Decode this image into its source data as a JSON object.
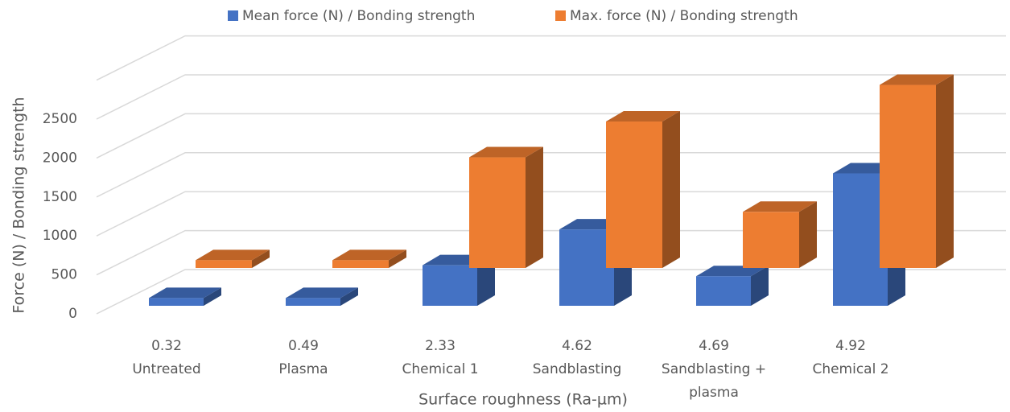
{
  "chart_data": {
    "type": "bar3d",
    "legend": "top",
    "grid": true,
    "x_label": "Surface roughness (Ra-µm)",
    "y_label": "Force (N) / Bonding strength",
    "categories": [
      [
        "0.32",
        "Untreated"
      ],
      [
        "0.49",
        "Plasma"
      ],
      [
        "2.33",
        "Chemical 1"
      ],
      [
        "4.62",
        "Sandblasting"
      ],
      [
        "4.69",
        "Sandblasting +",
        "plasma"
      ],
      [
        "4.92",
        "Chemical 2"
      ]
    ],
    "series": [
      {
        "name": "Mean force (N) / Bonding strength",
        "color": "#4472c4",
        "values": [
          100,
          100,
          520,
          980,
          380,
          1700
        ]
      },
      {
        "name": "Max. force (N) / Bonding strength",
        "color": "#ed7d31",
        "values": [
          100,
          100,
          1420,
          1880,
          720,
          2350
        ]
      }
    ],
    "ylim": [
      0,
      3000
    ],
    "yticks": [
      0,
      500,
      1000,
      1500,
      2000,
      2500
    ]
  }
}
